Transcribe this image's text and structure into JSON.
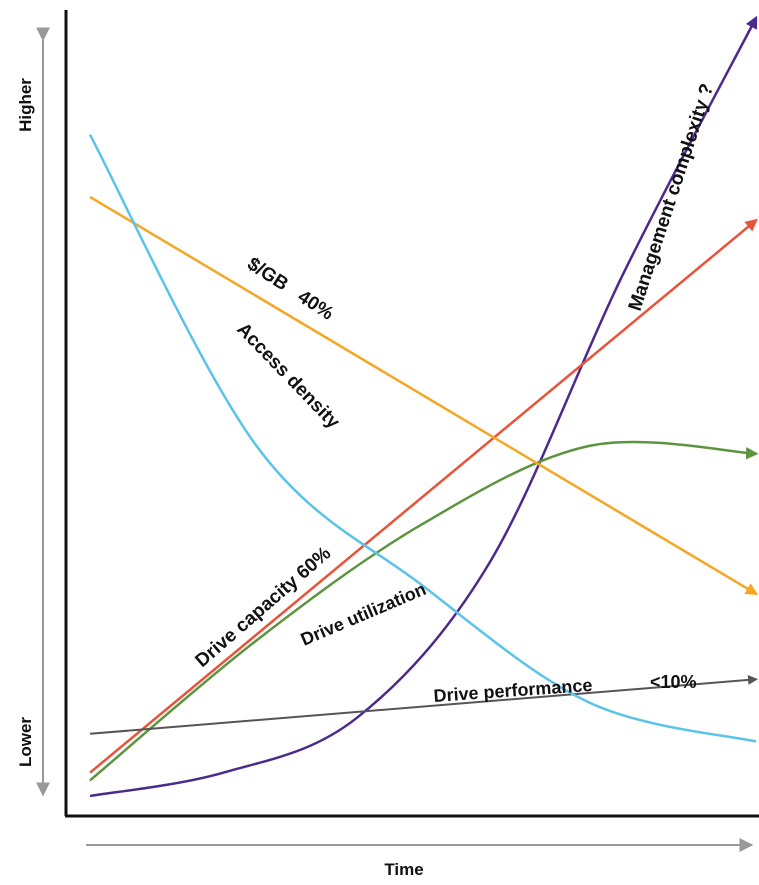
{
  "chart_data": {
    "type": "line",
    "title": "",
    "xlabel": "Time",
    "ylabel_high": "Higher",
    "ylabel_low": "Lower",
    "series": [
      {
        "name": "Management complexity ?",
        "label": "Management complexity ?",
        "color": "#4b2a8c",
        "x": [
          0,
          0.2,
          0.4,
          0.6,
          0.8,
          1.0
        ],
        "values": [
          0.0,
          0.03,
          0.1,
          0.3,
          0.67,
          1.0
        ]
      },
      {
        "name": "Drive capacity 60%",
        "label": "Drive capacity 60%",
        "color": "#e8533a",
        "x": [
          0,
          1.0
        ],
        "values": [
          0.03,
          0.74
        ]
      },
      {
        "name": "Drive utilization",
        "label": "Drive utilization",
        "color": "#5d9440",
        "x": [
          0,
          0.25,
          0.5,
          0.75,
          1.0
        ],
        "values": [
          0.02,
          0.2,
          0.35,
          0.45,
          0.44
        ]
      },
      {
        "name": "Drive performance",
        "label": "Drive performance",
        "annotation": "<10%",
        "color": "#555555",
        "x": [
          0,
          1.0
        ],
        "values": [
          0.08,
          0.15
        ]
      },
      {
        "name": "$/GB 40%",
        "label": "$/GB   40%",
        "color": "#f6a623",
        "x": [
          0,
          1.0
        ],
        "values": [
          0.77,
          0.26
        ]
      },
      {
        "name": "Access density",
        "label": "Access density",
        "color": "#5ac3e8",
        "x": [
          0,
          0.25,
          0.5,
          0.75,
          1.0
        ],
        "values": [
          0.85,
          0.45,
          0.27,
          0.12,
          0.07
        ]
      }
    ]
  }
}
